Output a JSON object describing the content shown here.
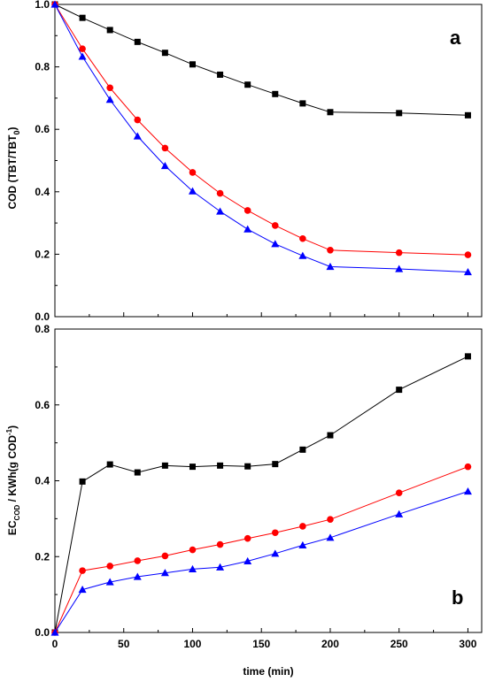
{
  "chart_data": [
    {
      "type": "line",
      "panel_label": "a",
      "ylabel_main": "COD (TBT/TBT",
      "ylabel_sub": "0",
      "ylabel_close": ")",
      "xlim": [
        0,
        310
      ],
      "ylim": [
        0,
        1.0
      ],
      "yticks": [
        0.0,
        0.2,
        0.4,
        0.6,
        0.8,
        1.0
      ],
      "ytick_labels": [
        "0.0",
        "0.2",
        "0.4",
        "0.6",
        "0.8",
        "1.0"
      ],
      "series": [
        {
          "marker": "square",
          "color": "#000000",
          "x": [
            0,
            20,
            40,
            60,
            80,
            100,
            120,
            140,
            160,
            180,
            200,
            250,
            300
          ],
          "y": [
            1.0,
            0.957,
            0.918,
            0.88,
            0.845,
            0.808,
            0.775,
            0.743,
            0.713,
            0.683,
            0.655,
            0.652,
            0.645
          ]
        },
        {
          "marker": "circle",
          "color": "#ff0000",
          "x": [
            0,
            20,
            40,
            60,
            80,
            100,
            120,
            140,
            160,
            180,
            200,
            250,
            300
          ],
          "y": [
            1.0,
            0.858,
            0.733,
            0.63,
            0.54,
            0.462,
            0.395,
            0.34,
            0.292,
            0.25,
            0.213,
            0.205,
            0.198
          ]
        },
        {
          "marker": "triangle",
          "color": "#0000ff",
          "x": [
            0,
            20,
            40,
            60,
            80,
            100,
            120,
            140,
            160,
            180,
            200,
            250,
            300
          ],
          "y": [
            1.0,
            0.833,
            0.695,
            0.578,
            0.483,
            0.402,
            0.337,
            0.28,
            0.233,
            0.195,
            0.16,
            0.153,
            0.143
          ]
        }
      ]
    },
    {
      "type": "line",
      "panel_label": "b",
      "ylabel_main": "EC",
      "ylabel_sub": "COD",
      "ylabel_rest": " / KWh(g COD",
      "ylabel_sup": "-1",
      "ylabel_close": ")",
      "xlabel": "time (min)",
      "xlim": [
        0,
        310
      ],
      "ylim": [
        0,
        0.8
      ],
      "xticks": [
        0,
        50,
        100,
        150,
        200,
        250,
        300
      ],
      "xtick_labels": [
        "0",
        "50",
        "100",
        "150",
        "200",
        "250",
        "300"
      ],
      "yticks": [
        0.0,
        0.2,
        0.4,
        0.6,
        0.8
      ],
      "ytick_labels": [
        "0.0",
        "0.2",
        "0.4",
        "0.6",
        "0.8"
      ],
      "series": [
        {
          "marker": "square",
          "color": "#000000",
          "x": [
            0,
            20,
            40,
            60,
            80,
            100,
            120,
            140,
            160,
            180,
            200,
            250,
            300
          ],
          "y": [
            0.0,
            0.398,
            0.443,
            0.422,
            0.44,
            0.437,
            0.44,
            0.438,
            0.444,
            0.482,
            0.52,
            0.64,
            0.728
          ]
        },
        {
          "marker": "circle",
          "color": "#ff0000",
          "x": [
            0,
            20,
            40,
            60,
            80,
            100,
            120,
            140,
            160,
            180,
            200,
            250,
            300
          ],
          "y": [
            0.0,
            0.163,
            0.175,
            0.189,
            0.202,
            0.218,
            0.232,
            0.248,
            0.263,
            0.28,
            0.298,
            0.368,
            0.437
          ]
        },
        {
          "marker": "triangle",
          "color": "#0000ff",
          "x": [
            0,
            20,
            40,
            60,
            80,
            100,
            120,
            140,
            160,
            180,
            200,
            250,
            300
          ],
          "y": [
            0.0,
            0.113,
            0.133,
            0.147,
            0.157,
            0.167,
            0.172,
            0.188,
            0.208,
            0.23,
            0.25,
            0.312,
            0.372
          ]
        }
      ]
    }
  ]
}
